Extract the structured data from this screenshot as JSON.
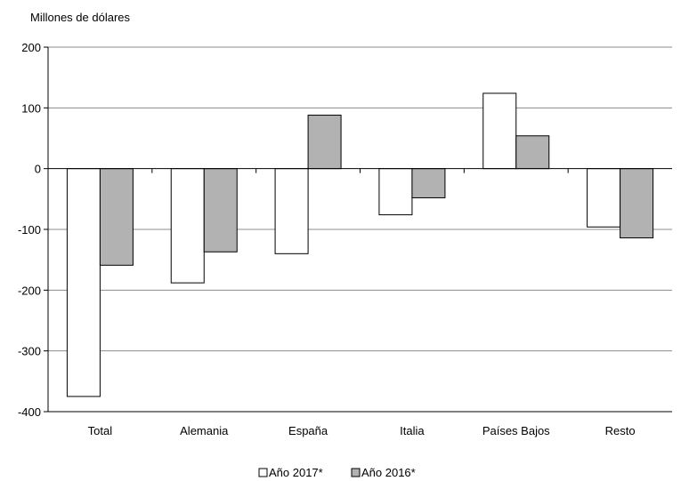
{
  "chart_data": {
    "type": "bar",
    "ylabel": "Millones de dólares",
    "categories": [
      "Total",
      "Alemania",
      "España",
      "Italia",
      "Países Bajos",
      "Resto"
    ],
    "series": [
      {
        "name": "Año 2017*",
        "values": [
          -375,
          -188,
          -140,
          -76,
          124,
          -96
        ],
        "color": "#ffffff"
      },
      {
        "name": "Año 2016*",
        "values": [
          -159,
          -137,
          88,
          -48,
          54,
          -114
        ],
        "color": "#b2b2b2"
      }
    ],
    "ylim": [
      -400,
      200
    ],
    "yticks": [
      200,
      100,
      0,
      -100,
      -200,
      -300,
      -400
    ],
    "ytick_labels": [
      "200",
      "100",
      "0",
      "-100",
      "-200",
      "-300",
      "-400"
    ],
    "grid": true,
    "legend_position": "bottom-center"
  }
}
